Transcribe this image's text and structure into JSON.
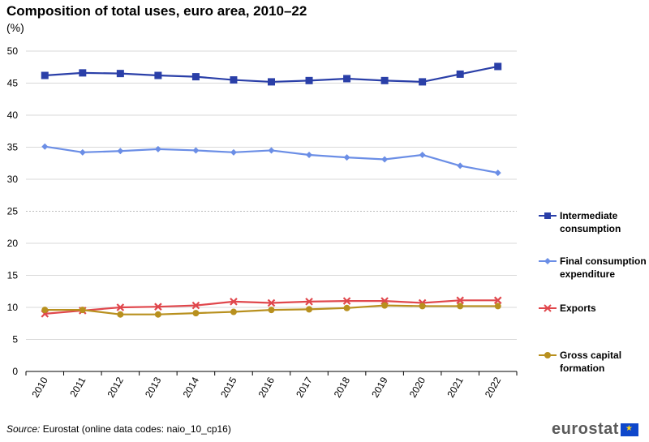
{
  "header": {
    "title": "Composition of total uses, euro area, 2010–22",
    "unit": "(%)"
  },
  "chart_data": {
    "type": "line",
    "title": "Composition of total uses, euro area, 2010–22",
    "ylabel": "(%)",
    "xlabel": "",
    "ylim": [
      0,
      50
    ],
    "yticks": [
      0,
      5,
      10,
      15,
      20,
      25,
      30,
      35,
      40,
      45,
      50
    ],
    "grid": true,
    "legend_position": "right",
    "categories": [
      "2010",
      "2011",
      "2012",
      "2013",
      "2014",
      "2015",
      "2016",
      "2017",
      "2018",
      "2019",
      "2020",
      "2021",
      "2022"
    ],
    "series": [
      {
        "name": "Intermediate consumption",
        "label_lines": [
          "Intermediate",
          "consumption"
        ],
        "color": "#2a3fa8",
        "marker": "square",
        "values": [
          46.2,
          46.6,
          46.5,
          46.2,
          46.0,
          45.5,
          45.2,
          45.4,
          45.7,
          45.4,
          45.2,
          46.4,
          47.6
        ]
      },
      {
        "name": "Final consumption expenditure",
        "label_lines": [
          "Final consumption",
          "expenditure"
        ],
        "color": "#6b8ee6",
        "marker": "diamond",
        "values": [
          35.1,
          34.2,
          34.4,
          34.7,
          34.5,
          34.2,
          34.5,
          33.8,
          33.4,
          33.1,
          33.8,
          32.1,
          31.0
        ]
      },
      {
        "name": "Exports",
        "label_lines": [
          "Exports"
        ],
        "color": "#e0474c",
        "marker": "x",
        "values": [
          9.0,
          9.5,
          10.0,
          10.1,
          10.3,
          10.9,
          10.7,
          10.9,
          11.0,
          11.0,
          10.7,
          11.1,
          11.1
        ]
      },
      {
        "name": "Gross capital formation",
        "label_lines": [
          "Gross capital",
          "formation"
        ],
        "color": "#b8901e",
        "marker": "circle",
        "values": [
          9.6,
          9.6,
          8.9,
          8.9,
          9.1,
          9.3,
          9.6,
          9.7,
          9.9,
          10.3,
          10.2,
          10.2,
          10.2
        ]
      }
    ]
  },
  "footer": {
    "source_label": "Source:",
    "source_text": " Eurostat (online data codes: naio_10_cp16)",
    "logo_text": "eurostat"
  }
}
